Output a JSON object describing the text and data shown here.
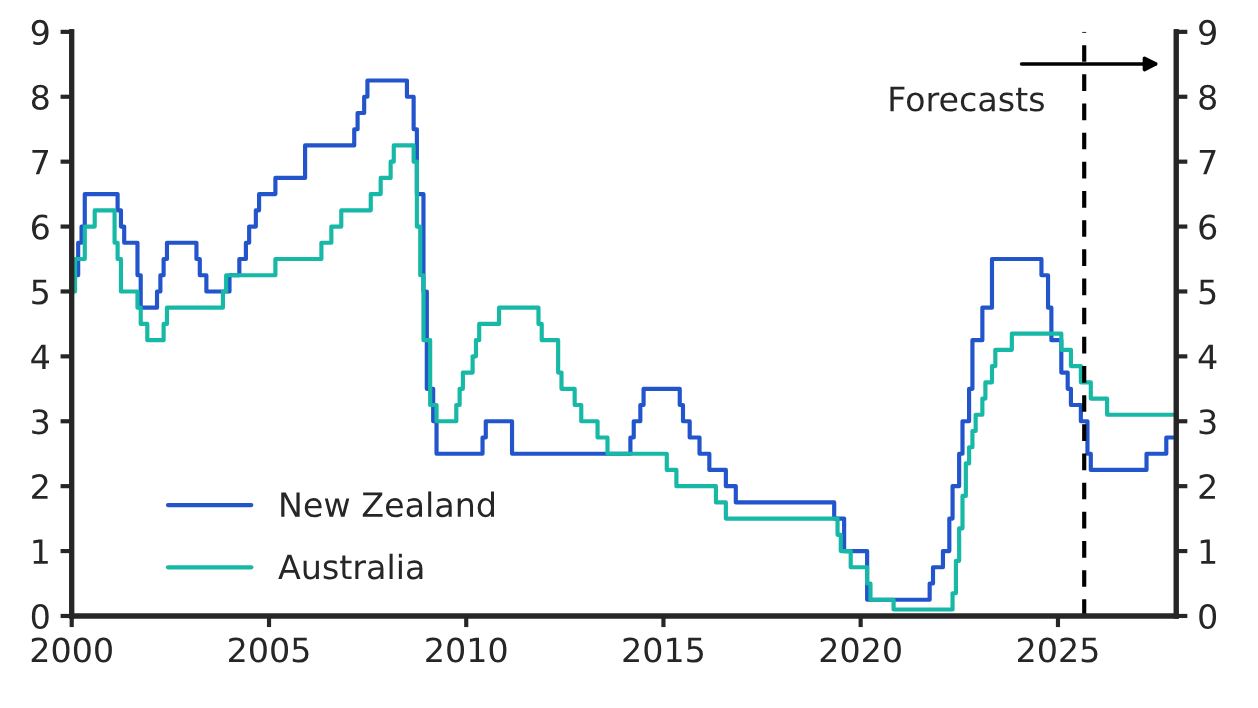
{
  "chart_data": {
    "type": "step",
    "series": [
      {
        "name": "New Zealand",
        "color": "#2255cc",
        "x": [
          "2000-01",
          "2000-03",
          "2000-04",
          "2000-05",
          "2001-03",
          "2001-04",
          "2001-05",
          "2001-09",
          "2001-10",
          "2002-03",
          "2002-04",
          "2002-05",
          "2002-06",
          "2003-03",
          "2003-04",
          "2003-06",
          "2004-01",
          "2004-04",
          "2004-06",
          "2004-07",
          "2004-09",
          "2004-10",
          "2005-03",
          "2005-12",
          "2007-03",
          "2007-04",
          "2007-06",
          "2007-07",
          "2008-07",
          "2008-09",
          "2008-10",
          "2008-12",
          "2009-01",
          "2009-03",
          "2009-04",
          "2010-06",
          "2010-07",
          "2011-03",
          "2014-03",
          "2014-04",
          "2014-06",
          "2014-07",
          "2015-06",
          "2015-07",
          "2015-09",
          "2015-12",
          "2016-03",
          "2016-08",
          "2016-11",
          "2019-05",
          "2019-08",
          "2020-03",
          "2021-10",
          "2021-11",
          "2022-02",
          "2022-04",
          "2022-05",
          "2022-07",
          "2022-08",
          "2022-10",
          "2022-11",
          "2023-02",
          "2023-05",
          "2024-08",
          "2024-10",
          "2024-11",
          "2025-02",
          "2025-04",
          "2025-05",
          "2025-08",
          "2025-10",
          "2025-11",
          "2027-04",
          "2027-10",
          "2028-01"
        ],
        "values": [
          5.25,
          5.75,
          6.0,
          6.5,
          6.25,
          6.0,
          5.75,
          5.25,
          4.75,
          5.0,
          5.25,
          5.5,
          5.75,
          5.5,
          5.25,
          5.0,
          5.25,
          5.5,
          5.75,
          6.0,
          6.25,
          6.5,
          6.75,
          7.25,
          7.5,
          7.75,
          8.0,
          8.25,
          8.0,
          7.5,
          6.5,
          5.0,
          3.5,
          3.0,
          2.5,
          2.75,
          3.0,
          2.5,
          2.75,
          3.0,
          3.25,
          3.5,
          3.25,
          3.0,
          2.75,
          2.5,
          2.25,
          2.0,
          1.75,
          1.5,
          1.0,
          0.25,
          0.5,
          0.75,
          1.0,
          1.5,
          2.0,
          2.5,
          3.0,
          3.5,
          4.25,
          4.75,
          5.5,
          5.25,
          4.75,
          4.25,
          3.75,
          3.5,
          3.25,
          3.0,
          2.5,
          2.25,
          2.5,
          2.75,
          2.75
        ]
      },
      {
        "name": "Australia",
        "color": "#17b8a6",
        "x": [
          "2000-01",
          "2000-02",
          "2000-05",
          "2000-08",
          "2001-02",
          "2001-03",
          "2001-04",
          "2001-09",
          "2001-10",
          "2001-12",
          "2002-05",
          "2002-06",
          "2003-11",
          "2003-12",
          "2005-03",
          "2006-05",
          "2006-08",
          "2006-11",
          "2007-08",
          "2007-11",
          "2008-02",
          "2008-03",
          "2008-09",
          "2008-10",
          "2008-11",
          "2008-12",
          "2009-02",
          "2009-04",
          "2009-10",
          "2009-11",
          "2009-12",
          "2010-03",
          "2010-04",
          "2010-05",
          "2010-11",
          "2011-11",
          "2011-12",
          "2012-05",
          "2012-06",
          "2012-10",
          "2012-12",
          "2013-05",
          "2013-08",
          "2015-02",
          "2015-05",
          "2016-05",
          "2016-08",
          "2019-06",
          "2019-07",
          "2019-10",
          "2020-03",
          "2020-04",
          "2020-11",
          "2022-05",
          "2022-06",
          "2022-07",
          "2022-08",
          "2022-09",
          "2022-10",
          "2022-11",
          "2022-12",
          "2023-02",
          "2023-03",
          "2023-05",
          "2023-06",
          "2023-11",
          "2025-02",
          "2025-05",
          "2025-08",
          "2025-11",
          "2026-04",
          "2028-01"
        ],
        "values": [
          5.0,
          5.5,
          6.0,
          6.25,
          5.75,
          5.5,
          5.0,
          4.75,
          4.5,
          4.25,
          4.5,
          4.75,
          5.0,
          5.25,
          5.5,
          5.75,
          6.0,
          6.25,
          6.5,
          6.75,
          7.0,
          7.25,
          7.0,
          6.0,
          5.25,
          4.25,
          3.25,
          3.0,
          3.25,
          3.5,
          3.75,
          4.0,
          4.25,
          4.5,
          4.75,
          4.5,
          4.25,
          3.75,
          3.5,
          3.25,
          3.0,
          2.75,
          2.5,
          2.25,
          2.0,
          1.75,
          1.5,
          1.25,
          1.0,
          0.75,
          0.5,
          0.25,
          0.1,
          0.35,
          0.85,
          1.35,
          1.85,
          2.35,
          2.6,
          2.85,
          3.1,
          3.35,
          3.6,
          3.85,
          4.1,
          4.35,
          4.1,
          3.85,
          3.6,
          3.35,
          3.1,
          3.1
        ]
      }
    ],
    "xlim": [
      "2000",
      "2028"
    ],
    "xticks": [
      {
        "value": "2000",
        "label": "2000"
      },
      {
        "value": "2005",
        "label": "2005"
      },
      {
        "value": "2010",
        "label": "2010"
      },
      {
        "value": "2015",
        "label": "2015"
      },
      {
        "value": "2020",
        "label": "2020"
      },
      {
        "value": "2025",
        "label": "2025"
      }
    ],
    "ylim": [
      0,
      9
    ],
    "yticks": [
      0,
      1,
      2,
      3,
      4,
      5,
      6,
      7,
      8,
      9
    ],
    "y2lim": [
      0,
      9
    ],
    "y2ticks": [
      0,
      1,
      2,
      3,
      4,
      5,
      6,
      7,
      8,
      9
    ],
    "ref_lines": [
      {
        "axis": "x",
        "value": "2025-09",
        "color": "#000000",
        "line_style": "dashed"
      }
    ],
    "annotations": [
      "Forecasts"
    ],
    "legend": "bottom left",
    "grid": false
  }
}
